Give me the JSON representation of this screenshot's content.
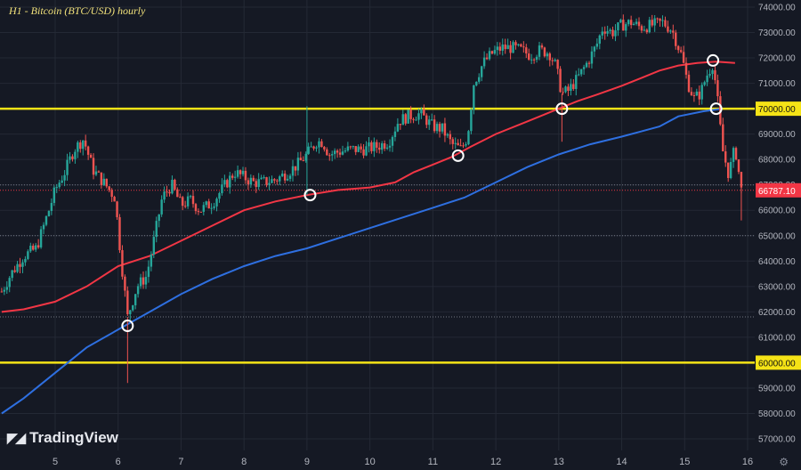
{
  "title": "H1 - Bitcoin (BTC/USD) hourly",
  "brand": "TradingView",
  "settings_icon": "settings-icon",
  "chart_data": {
    "type": "candlestick",
    "title": "H1 - Bitcoin (BTC/USD) hourly",
    "ylim": [
      56500,
      74200
    ],
    "y_ticks": [
      57000,
      58000,
      59000,
      60000,
      61000,
      62000,
      63000,
      64000,
      65000,
      66000,
      67000,
      68000,
      69000,
      70000,
      71000,
      72000,
      73000,
      74000
    ],
    "y_tick_labels": [
      "57000.00",
      "58000.00",
      "59000.00",
      "60000.00",
      "61000.00",
      "62000.00",
      "63000.00",
      "64000.00",
      "65000.00",
      "66000.00",
      "67000.00",
      "68000.00",
      "69000.00",
      "70000.00",
      "71000.00",
      "72000.00",
      "73000.00",
      "74000.00"
    ],
    "x_ticks": [
      5,
      6,
      7,
      8,
      9,
      10,
      11,
      12,
      13,
      14,
      15,
      16
    ],
    "x_range": [
      4.15,
      16.3
    ],
    "horizontal_levels": [
      {
        "value": 70000,
        "label": "70000.00",
        "color": "#f5e316"
      },
      {
        "value": 60000,
        "label": "60000.00",
        "color": "#f5e316"
      }
    ],
    "dotted_levels": [
      67000,
      65000,
      61800
    ],
    "last_price": {
      "value": 66787.1,
      "label": "66787.10",
      "color": "#f23645"
    },
    "moving_averages": [
      {
        "color": "#f23645",
        "points": [
          [
            4.15,
            62000
          ],
          [
            4.5,
            62100
          ],
          [
            5,
            62400
          ],
          [
            5.5,
            63000
          ],
          [
            6,
            63800
          ],
          [
            6.5,
            64200
          ],
          [
            7,
            64800
          ],
          [
            7.5,
            65400
          ],
          [
            8,
            66000
          ],
          [
            8.5,
            66350
          ],
          [
            9,
            66600
          ],
          [
            9.5,
            66800
          ],
          [
            10,
            66900
          ],
          [
            10.4,
            67100
          ],
          [
            10.7,
            67500
          ],
          [
            11,
            67800
          ],
          [
            11.3,
            68100
          ],
          [
            11.6,
            68500
          ],
          [
            12,
            69000
          ],
          [
            12.5,
            69500
          ],
          [
            13,
            70000
          ],
          [
            13.3,
            70300
          ],
          [
            13.6,
            70550
          ],
          [
            14,
            70900
          ],
          [
            14.3,
            71200
          ],
          [
            14.6,
            71500
          ],
          [
            14.9,
            71700
          ],
          [
            15.2,
            71800
          ],
          [
            15.5,
            71850
          ],
          [
            15.8,
            71800
          ]
        ]
      },
      {
        "color": "#2e6fe0",
        "points": [
          [
            4.15,
            58000
          ],
          [
            4.5,
            58600
          ],
          [
            5,
            59600
          ],
          [
            5.5,
            60600
          ],
          [
            6,
            61300
          ],
          [
            6.5,
            62000
          ],
          [
            7,
            62700
          ],
          [
            7.5,
            63300
          ],
          [
            8,
            63800
          ],
          [
            8.5,
            64200
          ],
          [
            9,
            64500
          ],
          [
            9.5,
            64900
          ],
          [
            10,
            65300
          ],
          [
            10.5,
            65700
          ],
          [
            11,
            66100
          ],
          [
            11.5,
            66500
          ],
          [
            12,
            67100
          ],
          [
            12.5,
            67700
          ],
          [
            13,
            68200
          ],
          [
            13.5,
            68600
          ],
          [
            14,
            68900
          ],
          [
            14.3,
            69100
          ],
          [
            14.6,
            69300
          ],
          [
            14.9,
            69700
          ],
          [
            15.3,
            69900
          ],
          [
            15.6,
            70000
          ]
        ]
      }
    ],
    "markers": [
      [
        6.15,
        61450
      ],
      [
        9.05,
        66600
      ],
      [
        11.4,
        68150
      ],
      [
        13.05,
        70000
      ],
      [
        15.45,
        71900
      ],
      [
        15.5,
        70000
      ]
    ],
    "price_path": [
      [
        4.15,
        62800
      ],
      [
        4.3,
        63500
      ],
      [
        4.5,
        64200
      ],
      [
        4.7,
        64500
      ],
      [
        4.9,
        66000
      ],
      [
        5,
        66800
      ],
      [
        5.15,
        67500
      ],
      [
        5.3,
        68400
      ],
      [
        5.45,
        68800
      ],
      [
        5.6,
        67600
      ],
      [
        5.8,
        67000
      ],
      [
        5.95,
        66500
      ],
      [
        6.05,
        64000
      ],
      [
        6.15,
        61800
      ],
      [
        6.3,
        63000
      ],
      [
        6.45,
        63400
      ],
      [
        6.55,
        64600
      ],
      [
        6.7,
        66500
      ],
      [
        6.85,
        67000
      ],
      [
        7,
        66200
      ],
      [
        7.15,
        66400
      ],
      [
        7.3,
        66000
      ],
      [
        7.5,
        66300
      ],
      [
        7.7,
        67000
      ],
      [
        7.85,
        67500
      ],
      [
        8,
        67300
      ],
      [
        8.15,
        67100
      ],
      [
        8.3,
        67100
      ],
      [
        8.5,
        67200
      ],
      [
        8.7,
        67500
      ],
      [
        8.85,
        67800
      ],
      [
        9,
        68200
      ],
      [
        9.15,
        68700
      ],
      [
        9.25,
        68700
      ],
      [
        9.35,
        68200
      ],
      [
        9.5,
        68300
      ],
      [
        9.7,
        68400
      ],
      [
        9.9,
        68400
      ],
      [
        10.1,
        68500
      ],
      [
        10.3,
        68700
      ],
      [
        10.45,
        69500
      ],
      [
        10.6,
        69700
      ],
      [
        10.8,
        69800
      ],
      [
        11,
        69300
      ],
      [
        11.15,
        69200
      ],
      [
        11.3,
        68600
      ],
      [
        11.45,
        68400
      ],
      [
        11.55,
        68900
      ],
      [
        11.65,
        71000
      ],
      [
        11.8,
        71800
      ],
      [
        11.95,
        72200
      ],
      [
        12.1,
        72400
      ],
      [
        12.25,
        72400
      ],
      [
        12.4,
        72300
      ],
      [
        12.55,
        72100
      ],
      [
        12.7,
        72300
      ],
      [
        12.85,
        72200
      ],
      [
        12.95,
        71700
      ],
      [
        13.05,
        70600
      ],
      [
        13.15,
        70700
      ],
      [
        13.3,
        71200
      ],
      [
        13.45,
        71800
      ],
      [
        13.6,
        72500
      ],
      [
        13.7,
        73200
      ],
      [
        13.85,
        73000
      ],
      [
        14,
        73300
      ],
      [
        14.15,
        73400
      ],
      [
        14.3,
        73200
      ],
      [
        14.5,
        73300
      ],
      [
        14.65,
        73400
      ],
      [
        14.8,
        73100
      ],
      [
        14.95,
        72100
      ],
      [
        15.05,
        71000
      ],
      [
        15.15,
        70400
      ],
      [
        15.25,
        70600
      ],
      [
        15.35,
        71300
      ],
      [
        15.45,
        71800
      ],
      [
        15.52,
        70400
      ],
      [
        15.6,
        68400
      ],
      [
        15.7,
        67400
      ],
      [
        15.8,
        68500
      ],
      [
        15.9,
        66800
      ]
    ]
  }
}
